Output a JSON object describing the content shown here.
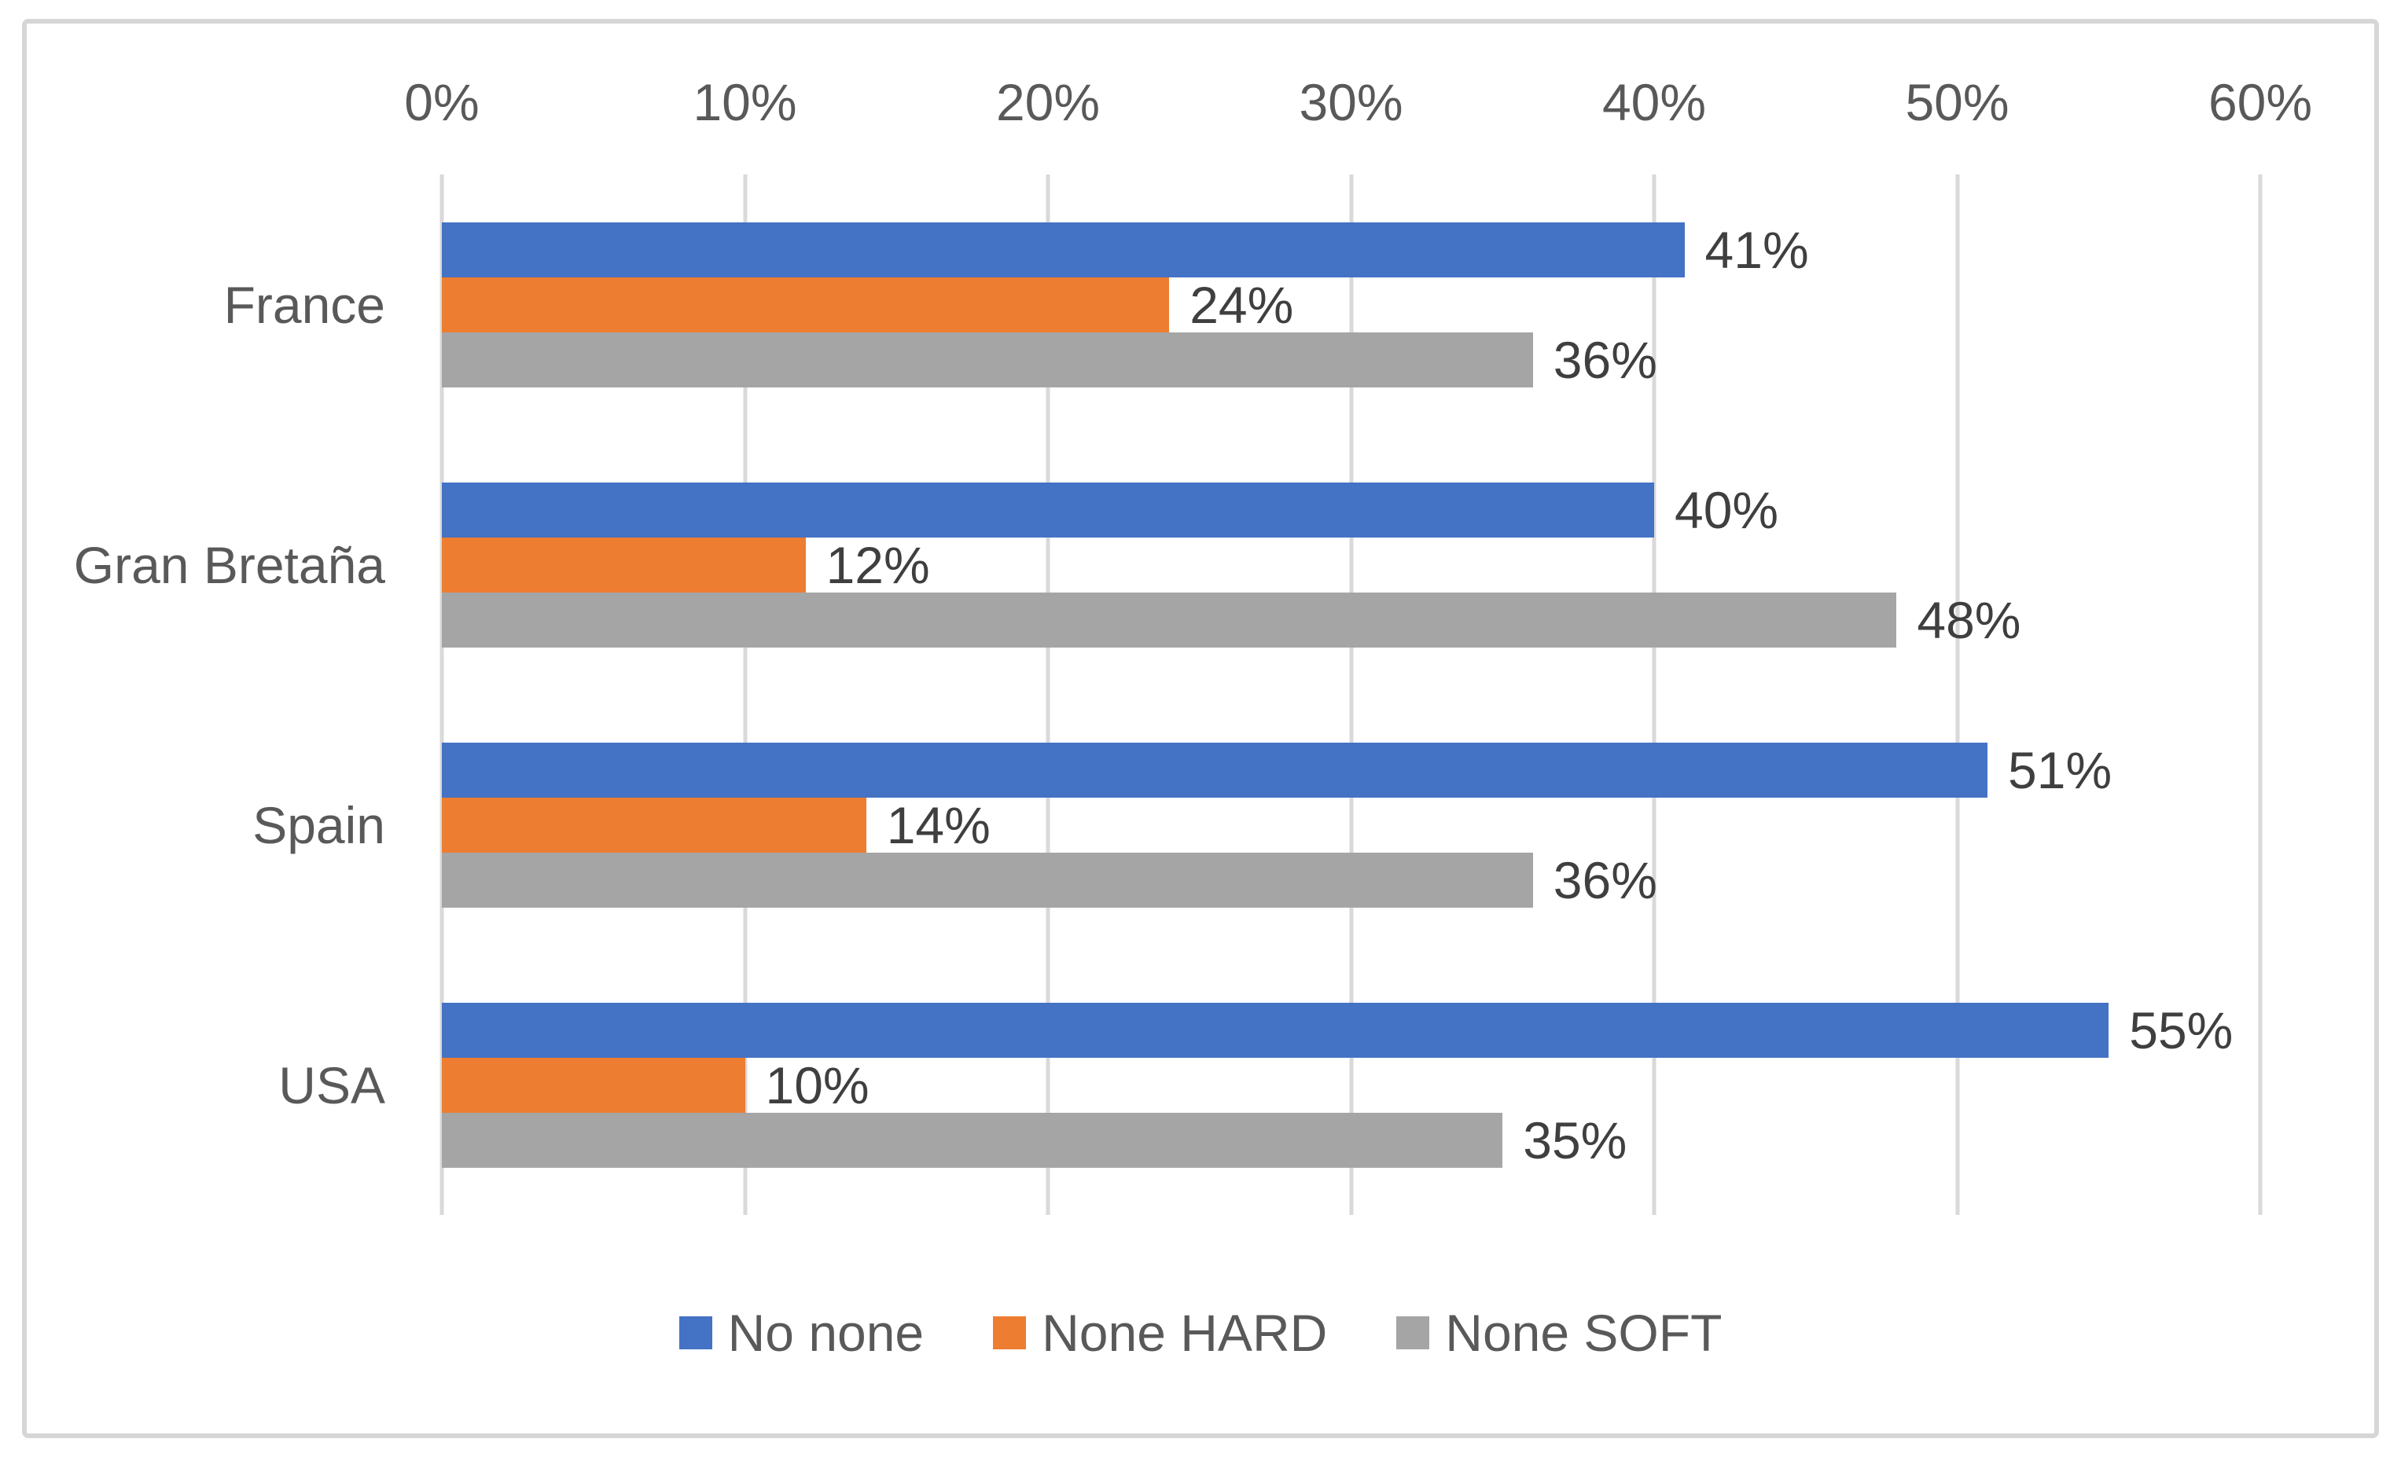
{
  "chart_data": {
    "type": "bar",
    "orientation": "horizontal",
    "title": "",
    "categories": [
      "France",
      "Gran Bretaña",
      "Spain",
      "USA"
    ],
    "series": [
      {
        "name": "No none",
        "color": "#4472C4",
        "values": [
          41,
          40,
          51,
          55
        ],
        "labels": [
          "41%",
          "40%",
          "51%",
          "55%"
        ]
      },
      {
        "name": "None HARD",
        "color": "#ED7D31",
        "values": [
          24,
          12,
          14,
          10
        ],
        "labels": [
          "24%",
          "12%",
          "14%",
          "10%"
        ]
      },
      {
        "name": "None SOFT",
        "color": "#A5A5A5",
        "values": [
          36,
          48,
          36,
          35
        ],
        "labels": [
          "36%",
          "48%",
          "36%",
          "35%"
        ]
      }
    ],
    "x_axis": {
      "position": "top",
      "min": 0,
      "max": 60,
      "tick_step": 10,
      "unit": "%",
      "ticks": [
        "0%",
        "10%",
        "20%",
        "30%",
        "40%",
        "50%",
        "60%"
      ],
      "gridlines": true
    },
    "legend": {
      "position": "bottom",
      "entries": [
        "No none",
        "None HARD",
        "None SOFT"
      ]
    }
  },
  "styles": {
    "background": "#FFFFFF",
    "frame_border": "#D6D6D6",
    "gridline": "#D9D9D9",
    "axis_text": "#595959",
    "category_text": "#595959",
    "data_label_text": "#3F3F3F",
    "legend_text": "#595959"
  }
}
